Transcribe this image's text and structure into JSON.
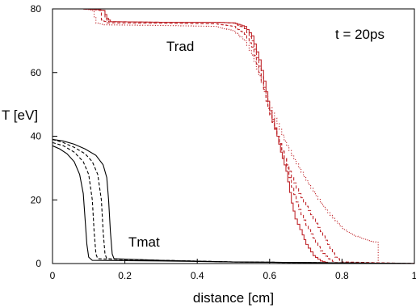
{
  "chart_data": {
    "type": "line",
    "xlabel": "distance [cm]",
    "ylabel": "T [eV]",
    "xlim": [
      0,
      1
    ],
    "ylim": [
      0,
      80
    ],
    "x_ticks": [
      "0",
      "0.2",
      "0.4",
      "0.6",
      "0.8",
      "1"
    ],
    "y_ticks": [
      "0",
      "20",
      "40",
      "60",
      "80"
    ],
    "grid": false,
    "annotations": [
      {
        "text": "t = 20ps",
        "x": 0.89,
        "y": 73
      },
      {
        "text": "Trad",
        "x": 0.44,
        "y": 67.5
      },
      {
        "text": "Tmat",
        "x": 0.24,
        "y": 5
      }
    ],
    "series": [
      {
        "group": "Trad",
        "style": "solid",
        "color": "#c0282d",
        "step": true,
        "points": [
          [
            0,
            80
          ],
          [
            0.08,
            80
          ],
          [
            0.12,
            79.8
          ],
          [
            0.14,
            79.5
          ],
          [
            0.15,
            77
          ],
          [
            0.16,
            76
          ],
          [
            0.3,
            75.8
          ],
          [
            0.45,
            75.8
          ],
          [
            0.5,
            75.6
          ],
          [
            0.53,
            74.5
          ],
          [
            0.55,
            71.5
          ],
          [
            0.57,
            64
          ],
          [
            0.59,
            54
          ],
          [
            0.6,
            48
          ],
          [
            0.62,
            40
          ],
          [
            0.63,
            35
          ],
          [
            0.645,
            29
          ],
          [
            0.66,
            19
          ],
          [
            0.67,
            14
          ],
          [
            0.69,
            9
          ],
          [
            0.7,
            6
          ],
          [
            0.72,
            2.5
          ],
          [
            0.74,
            0.8
          ],
          [
            0.76,
            0.2
          ],
          [
            1.0,
            0
          ]
        ]
      },
      {
        "group": "Trad",
        "style": "dashed",
        "color": "#c0282d",
        "step": true,
        "points": [
          [
            0,
            80
          ],
          [
            0.08,
            80
          ],
          [
            0.12,
            79.8
          ],
          [
            0.14,
            79.5
          ],
          [
            0.145,
            77
          ],
          [
            0.155,
            76
          ],
          [
            0.3,
            75.8
          ],
          [
            0.45,
            75.8
          ],
          [
            0.5,
            75.5
          ],
          [
            0.53,
            73.8
          ],
          [
            0.55,
            70
          ],
          [
            0.57,
            62
          ],
          [
            0.59,
            52
          ],
          [
            0.6,
            47
          ],
          [
            0.62,
            40
          ],
          [
            0.64,
            33
          ],
          [
            0.66,
            24
          ],
          [
            0.68,
            17
          ],
          [
            0.7,
            12
          ],
          [
            0.72,
            8
          ],
          [
            0.74,
            4
          ],
          [
            0.76,
            1.5
          ],
          [
            0.78,
            0.3
          ],
          [
            1.0,
            0
          ]
        ]
      },
      {
        "group": "Trad",
        "style": "dashed",
        "color": "#c0282d",
        "step": true,
        "points": [
          [
            0,
            80
          ],
          [
            0.08,
            80
          ],
          [
            0.11,
            79.8
          ],
          [
            0.13,
            79.5
          ],
          [
            0.135,
            76.5
          ],
          [
            0.15,
            75.6
          ],
          [
            0.3,
            75.5
          ],
          [
            0.45,
            75.3
          ],
          [
            0.5,
            74.5
          ],
          [
            0.53,
            72
          ],
          [
            0.55,
            68
          ],
          [
            0.57,
            60
          ],
          [
            0.59,
            51
          ],
          [
            0.6,
            46.5
          ],
          [
            0.62,
            40
          ],
          [
            0.64,
            33
          ],
          [
            0.66,
            27
          ],
          [
            0.68,
            22
          ],
          [
            0.7,
            18
          ],
          [
            0.72,
            14
          ],
          [
            0.74,
            10
          ],
          [
            0.76,
            6
          ],
          [
            0.78,
            2
          ],
          [
            0.8,
            0.5
          ],
          [
            1.0,
            0
          ]
        ]
      },
      {
        "group": "Trad",
        "style": "dotted",
        "color": "#c0282d",
        "step": true,
        "points": [
          [
            0,
            80
          ],
          [
            0.08,
            80
          ],
          [
            0.1,
            79.8
          ],
          [
            0.11,
            79.5
          ],
          [
            0.12,
            75.5
          ],
          [
            0.14,
            75
          ],
          [
            0.3,
            74.8
          ],
          [
            0.45,
            74.5
          ],
          [
            0.5,
            73
          ],
          [
            0.53,
            70
          ],
          [
            0.55,
            65.5
          ],
          [
            0.57,
            59
          ],
          [
            0.59,
            52.5
          ],
          [
            0.6,
            49
          ],
          [
            0.62,
            44
          ],
          [
            0.64,
            38.5
          ],
          [
            0.66,
            34
          ],
          [
            0.68,
            30
          ],
          [
            0.7,
            26
          ],
          [
            0.72,
            22.5
          ],
          [
            0.74,
            19
          ],
          [
            0.76,
            16
          ],
          [
            0.78,
            13.5
          ],
          [
            0.8,
            11
          ],
          [
            0.82,
            9.5
          ],
          [
            0.85,
            8
          ],
          [
            0.88,
            7
          ],
          [
            0.9,
            6.5
          ],
          [
            0.9,
            0
          ],
          [
            1.0,
            0
          ]
        ]
      },
      {
        "group": "Tmat",
        "style": "solid",
        "color": "#000000",
        "step": false,
        "points": [
          [
            0,
            39
          ],
          [
            0.03,
            38.5
          ],
          [
            0.06,
            37.5
          ],
          [
            0.09,
            36
          ],
          [
            0.12,
            34
          ],
          [
            0.14,
            31
          ],
          [
            0.15,
            27
          ],
          [
            0.155,
            20
          ],
          [
            0.16,
            10
          ],
          [
            0.165,
            3
          ],
          [
            0.17,
            1.5
          ],
          [
            0.3,
            1
          ],
          [
            0.5,
            0.5
          ],
          [
            1.0,
            0
          ]
        ]
      },
      {
        "group": "Tmat",
        "style": "dashed",
        "color": "#000000",
        "step": false,
        "points": [
          [
            0,
            39
          ],
          [
            0.03,
            38
          ],
          [
            0.06,
            36.5
          ],
          [
            0.09,
            34.5
          ],
          [
            0.11,
            32
          ],
          [
            0.125,
            28
          ],
          [
            0.135,
            20
          ],
          [
            0.14,
            10
          ],
          [
            0.145,
            3
          ],
          [
            0.15,
            1.5
          ],
          [
            0.3,
            1
          ],
          [
            0.5,
            0.5
          ],
          [
            1.0,
            0
          ]
        ]
      },
      {
        "group": "Tmat",
        "style": "dashed",
        "color": "#000000",
        "step": false,
        "points": [
          [
            0,
            38
          ],
          [
            0.03,
            37
          ],
          [
            0.06,
            35
          ],
          [
            0.085,
            32
          ],
          [
            0.1,
            28
          ],
          [
            0.11,
            20
          ],
          [
            0.115,
            10
          ],
          [
            0.12,
            3
          ],
          [
            0.125,
            1.5
          ],
          [
            0.3,
            1
          ],
          [
            0.5,
            0.5
          ],
          [
            1.0,
            0
          ]
        ]
      },
      {
        "group": "Tmat",
        "style": "solid",
        "color": "#000000",
        "step": false,
        "points": [
          [
            0,
            37
          ],
          [
            0.02,
            36
          ],
          [
            0.04,
            34.5
          ],
          [
            0.06,
            32
          ],
          [
            0.075,
            28
          ],
          [
            0.085,
            22
          ],
          [
            0.09,
            14
          ],
          [
            0.095,
            6
          ],
          [
            0.1,
            2
          ],
          [
            0.11,
            1
          ],
          [
            0.3,
            0.8
          ],
          [
            0.5,
            0.5
          ],
          [
            1.0,
            0
          ]
        ]
      }
    ]
  }
}
